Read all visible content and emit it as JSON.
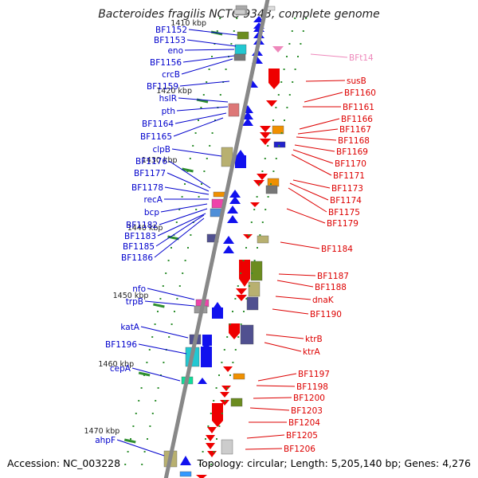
{
  "title": "Bacteroides fragilis NCTC 9343, complete genome",
  "footer": {
    "accession": "Accession: NC_003228",
    "summary": "Topology: circular; Length: 5,205,140 bp; Genes: 4,276"
  },
  "colors": {
    "backbone": "#888888",
    "forward_label": "#0000cc",
    "reverse_label": "#dd0000",
    "tick": "#2f8f2f",
    "pseudo_label": "#ee88bb"
  },
  "ticks": [
    "1410 kbp",
    "1420 kbp",
    "1430 kbp",
    "1440 kbp",
    "1450 kbp",
    "1460 kbp",
    "1470 kbp"
  ],
  "forward_genes": [
    "BF1152",
    "BF1153",
    "eno",
    "BF1156",
    "crcB",
    "BF1159",
    "hslR",
    "pth",
    "BF1164",
    "BF1165",
    "clpB",
    "BF1176",
    "BF1177",
    "BF1178",
    "recA",
    "bcp",
    "BF1182",
    "BF1183",
    "BF1185",
    "BF1186",
    "nfo",
    "trpB",
    "katA",
    "BF1196",
    "cepA",
    "ahpF"
  ],
  "reverse_genes": [
    "BFt14",
    "susB",
    "BF1160",
    "BF1161",
    "BF1166",
    "BF1167",
    "BF1168",
    "BF1169",
    "BF1170",
    "BF1171",
    "BF1173",
    "BF1174",
    "BF1175",
    "BF1179",
    "BF1184",
    "BF1187",
    "BF1188",
    "dnaK",
    "BF1190",
    "ktrB",
    "ktrA",
    "BF1197",
    "BF1198",
    "BF1200",
    "BF1203",
    "BF1204",
    "BF1205",
    "BF1206"
  ]
}
